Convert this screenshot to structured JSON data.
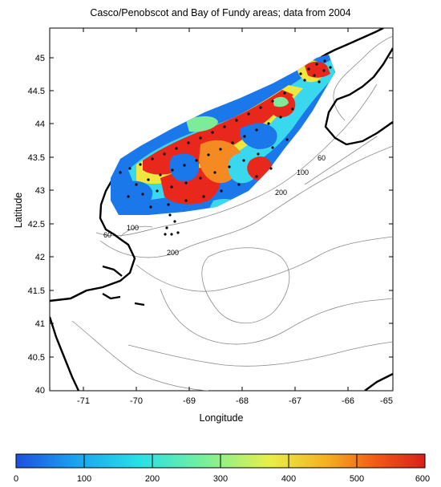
{
  "title": "Casco/Penobscot and Bay of Fundy areas; data from 2004",
  "xlabel": "Longitude",
  "ylabel": "Latitude",
  "x_ticks": [
    "-71",
    "-70",
    "-69",
    "-68",
    "-67",
    "-66",
    "-65"
  ],
  "y_ticks": [
    "45",
    "44.5",
    "44",
    "43.5",
    "43",
    "42.5",
    "42",
    "41.5",
    "41",
    "40.5",
    "40"
  ],
  "contour_labels": {
    "c60_east": "60",
    "c100_east": "100",
    "c200_east": "200",
    "c60_west": "60",
    "c100_west": "100",
    "c200_south": "200"
  },
  "colorbar": {
    "ticks": [
      "0",
      "100",
      "200",
      "300",
      "400",
      "500",
      "600"
    ],
    "colors": [
      "#1e4fe0",
      "#1aa0f0",
      "#28e0e6",
      "#70f0a0",
      "#e8f048",
      "#f5b020",
      "#f25a16",
      "#d8201a"
    ]
  },
  "map_extent": {
    "lon": [
      -71.8,
      -64.8
    ],
    "lat": [
      40,
      45.4
    ]
  },
  "fill_colors": {
    "blue": "#1a78ea",
    "cyan": "#3ad8ee",
    "green": "#7cec9a",
    "yellow": "#f0e640",
    "orange": "#f58a22",
    "red": "#e8281c"
  }
}
